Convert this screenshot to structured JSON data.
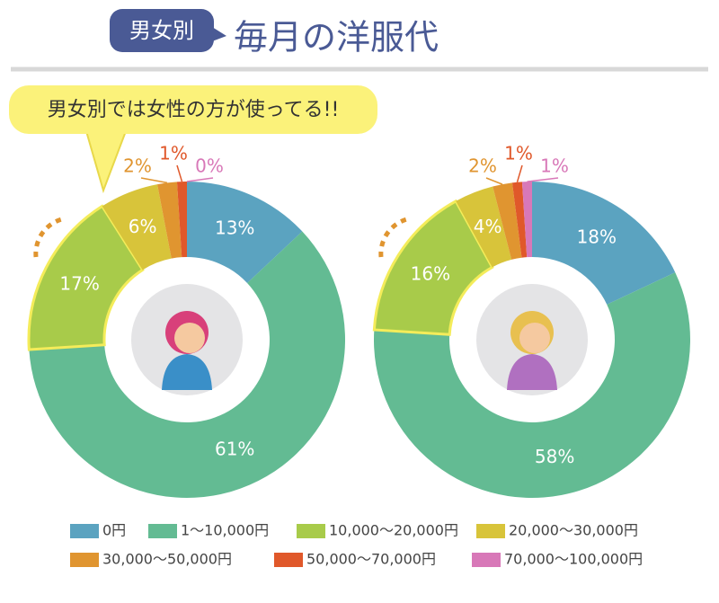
{
  "header": {
    "tag": "男女別",
    "title": "毎月の洋服代"
  },
  "callout": "男女別では女性の方が使ってる!!",
  "chart_data": [
    {
      "type": "donut",
      "categories": [
        "0円",
        "1〜10,000円",
        "10,000〜20,000円",
        "20,000〜30,000円",
        "30,000〜50,000円",
        "50,000〜70,000円",
        "70,000〜100,000円"
      ],
      "colors": [
        "#5ba3c0",
        "#63bb93",
        "#a8cb4a",
        "#d8c43a",
        "#e09530",
        "#e0582a",
        "#d878b8"
      ],
      "values": [
        13,
        61,
        17,
        6,
        2,
        1,
        0
      ],
      "value_labels": [
        "13%",
        "61%",
        "17%",
        "6%",
        "2%",
        "1%",
        "0%"
      ]
    },
    {
      "type": "donut",
      "values": [
        18,
        58,
        16,
        4,
        2,
        1,
        1
      ],
      "value_labels": [
        "18%",
        "58%",
        "16%",
        "4%",
        "2%",
        "1%",
        "1%"
      ]
    }
  ]
}
